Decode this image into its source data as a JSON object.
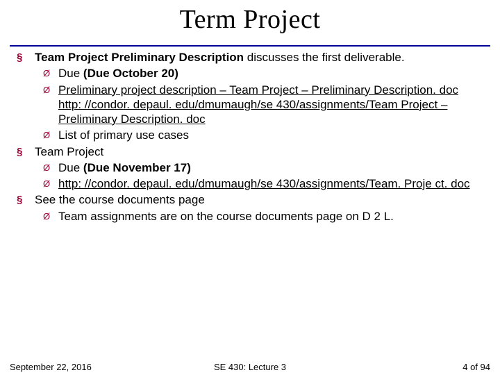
{
  "title": "Term Project",
  "colors": {
    "accent": "#990033",
    "rule": "#000099",
    "text": "#000000",
    "background": "#ffffff"
  },
  "typography": {
    "title_font": "Times New Roman",
    "body_font": "Arial",
    "title_size_pt": 28,
    "body_size_pt": 13
  },
  "bullets": {
    "lvl1_glyph": "§",
    "lvl2_glyph": "Ø"
  },
  "items": [
    {
      "prefix_bold": "Team Project Preliminary Description ",
      "rest": "discusses the first deliverable.",
      "sub": [
        {
          "plain_before": "Due ",
          "bold": "(Due October 20)"
        },
        {
          "link": "Preliminary project description – Team Project – Preliminary Description. doc",
          "link2": "http: //condor. depaul. edu/dmumaugh/se 430/assignments/Team Project – Preliminary Description. doc"
        },
        {
          "plain": "List of primary use cases"
        }
      ]
    },
    {
      "plain": "Team Project",
      "sub": [
        {
          "plain_before": "Due ",
          "bold": "(Due November 17)"
        },
        {
          "link": "http: //condor. depaul. edu/dmumaugh/se 430/assignments/Team. Proje ct. doc"
        }
      ]
    },
    {
      "plain": "See the course documents page",
      "sub": [
        {
          "plain": "Team assignments are on the course documents page on D 2 L."
        }
      ]
    }
  ],
  "footer": {
    "left": "September 22, 2016",
    "center": "SE 430: Lecture 3",
    "right": "4 of 94"
  }
}
